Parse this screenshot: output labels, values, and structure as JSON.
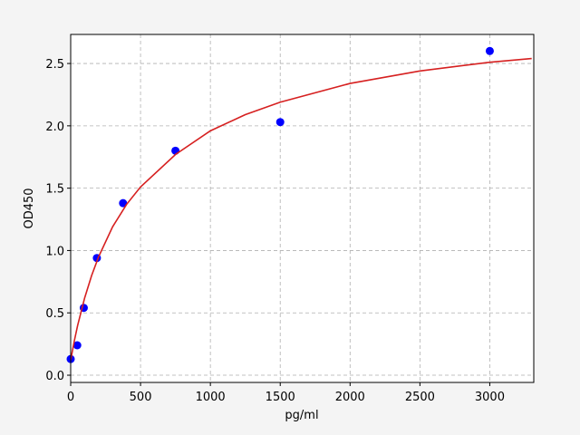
{
  "chart_data": {
    "type": "scatter",
    "xlabel": "pg/ml",
    "ylabel": "OD450",
    "series": [
      {
        "mode": "markers",
        "color": "#0000ff",
        "x": [
          0,
          46.875,
          93.75,
          187.5,
          375,
          750,
          1500,
          3000
        ],
        "values": [
          0.13,
          0.24,
          0.54,
          0.94,
          1.38,
          1.8,
          2.03,
          2.6
        ]
      },
      {
        "mode": "line",
        "color": "#d62020",
        "x": [
          0,
          25,
          50,
          100,
          150,
          200,
          300,
          400,
          500,
          750,
          1000,
          1250,
          1500,
          2000,
          2500,
          3000,
          3300
        ],
        "values": [
          0.12,
          0.27,
          0.4,
          0.62,
          0.8,
          0.95,
          1.19,
          1.37,
          1.51,
          1.77,
          1.96,
          2.09,
          2.19,
          2.34,
          2.44,
          2.51,
          2.54
        ]
      }
    ],
    "xlim": [
      0,
      3315
    ],
    "ylim": [
      -0.058,
      2.733
    ],
    "xticks": [
      0,
      500,
      1000,
      1500,
      2000,
      2500,
      3000
    ],
    "yticks": [
      {
        "value": 0,
        "label": "0.0"
      },
      0.5,
      {
        "value": 1,
        "label": "1.0"
      },
      1.5,
      {
        "value": 2,
        "label": "2.0"
      },
      2.5
    ],
    "grid": true
  }
}
